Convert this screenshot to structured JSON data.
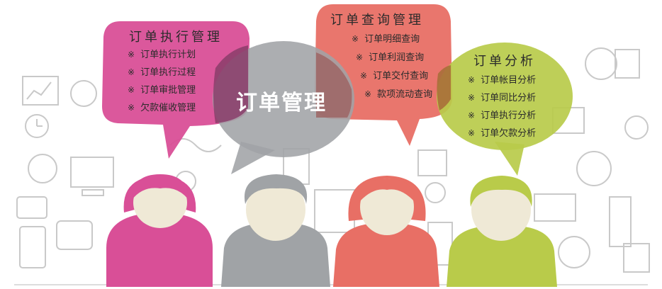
{
  "colors": {
    "pink": "#d94f97",
    "gray": "#a0a3a6",
    "salmon": "#e86f65",
    "green": "#b9cb4a",
    "skin": "#efe9d6",
    "doodle": "#c9c9c9"
  },
  "center": {
    "title": "订单管理"
  },
  "bubbles": {
    "execution": {
      "title": "订单执行管理",
      "items": [
        "订单执行计划",
        "订单执行过程",
        "订单审批管理",
        "欠款催收管理"
      ]
    },
    "query": {
      "title": "订单查询管理",
      "items": [
        "订单明细查询",
        "订单利润查询",
        "订单交付查询",
        "款项流动查询"
      ]
    },
    "analysis": {
      "title": "订单分析",
      "items": [
        "订单帐目分析",
        "订单同比分析",
        "订单执行分析",
        "订单欠款分析"
      ]
    }
  },
  "mark": "※"
}
